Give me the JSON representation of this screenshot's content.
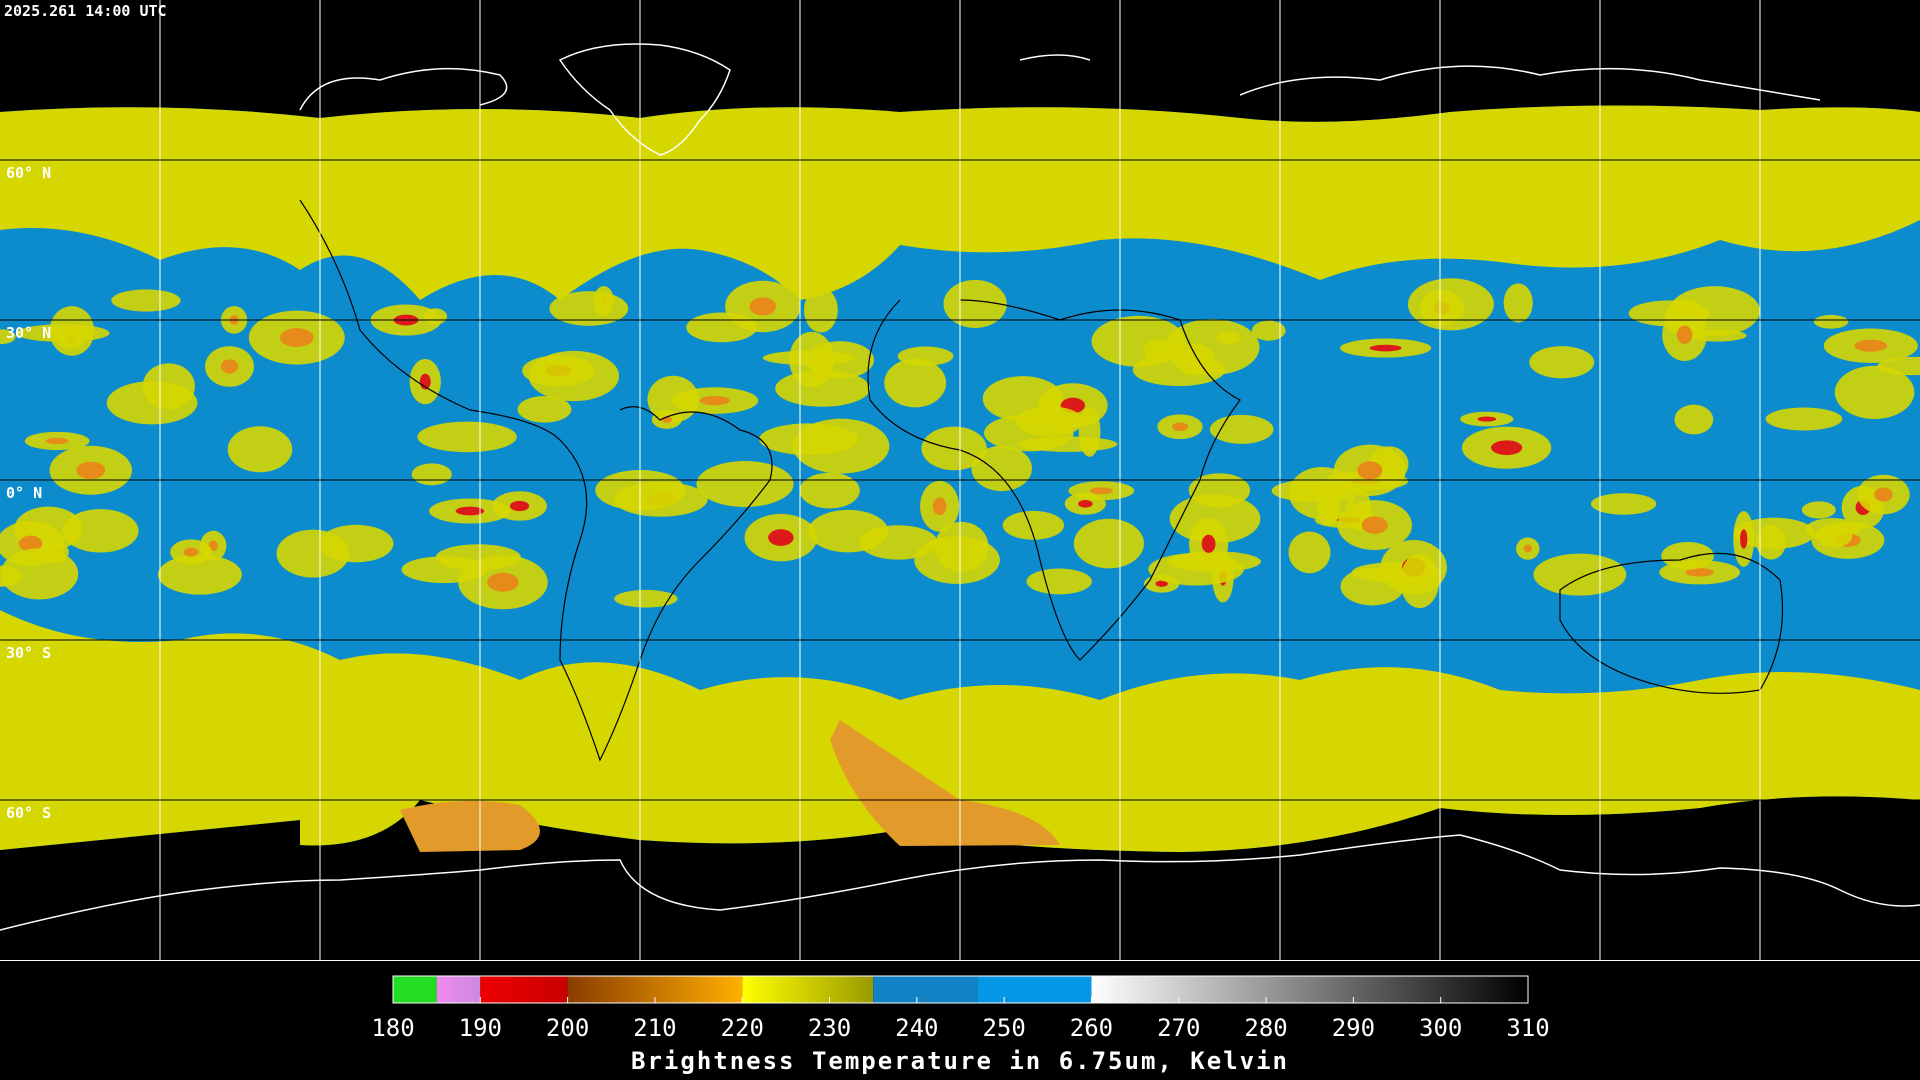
{
  "timestamp": "2025.261 14:00 UTC",
  "latitude_lines": [
    {
      "value": 60,
      "label": "60° N"
    },
    {
      "value": 30,
      "label": "30° N"
    },
    {
      "value": 0,
      "label": "0° N"
    },
    {
      "value": -30,
      "label": "30° S"
    },
    {
      "value": -60,
      "label": "60° S"
    }
  ],
  "colorbar": {
    "range": [
      180,
      310
    ],
    "ticks": [
      180,
      190,
      200,
      210,
      220,
      230,
      240,
      250,
      260,
      270,
      280,
      290,
      300,
      310
    ],
    "label": "Brightness Temperature in 6.75um, Kelvin",
    "segments": [
      {
        "from": 180,
        "to": 185,
        "colors": [
          "#22dd22",
          "#22dd22"
        ]
      },
      {
        "from": 185,
        "to": 190,
        "colors": [
          "#f08af0",
          "#cc88dd"
        ]
      },
      {
        "from": 190,
        "to": 200,
        "colors": [
          "#ee0000",
          "#c80000"
        ]
      },
      {
        "from": 200,
        "to": 220,
        "colors": [
          "#8a3c00",
          "#ffb000"
        ]
      },
      {
        "from": 220,
        "to": 235,
        "colors": [
          "#ffff00",
          "#9a9a00"
        ]
      },
      {
        "from": 235,
        "to": 247,
        "colors": [
          "#1182c4",
          "#1182c4"
        ]
      },
      {
        "from": 247,
        "to": 260,
        "colors": [
          "#0596e6",
          "#0596e6"
        ]
      },
      {
        "from": 260,
        "to": 310,
        "colors": [
          "#ffffff",
          "#000000"
        ]
      }
    ]
  }
}
